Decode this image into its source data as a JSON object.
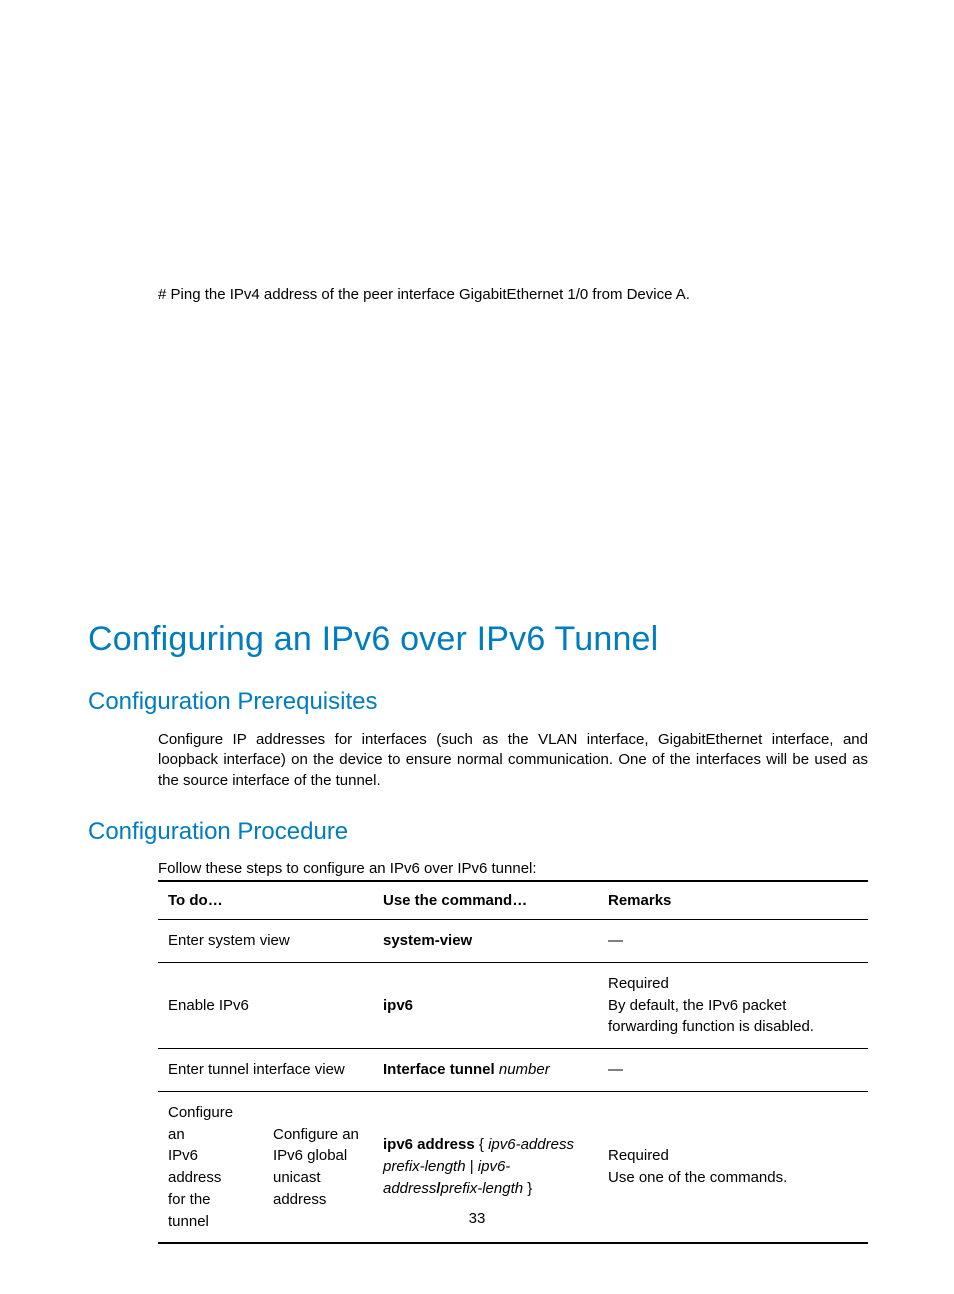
{
  "colors": {
    "heading": "#007cc1",
    "text": "#000000",
    "background": "#ffffff",
    "table_border": "#000000"
  },
  "typography": {
    "body_fontsize": 15,
    "h1_fontsize": 34,
    "h2_fontsize": 24
  },
  "intro_line": "# Ping the IPv4 address of the peer interface GigabitEthernet 1/0 from Device A.",
  "h1": "Configuring an IPv6 over IPv6 Tunnel",
  "h2_prereq": "Configuration Prerequisites",
  "prereq_para": "Configure IP addresses for interfaces (such as the VLAN interface, GigabitEthernet interface, and loopback interface) on the device to ensure normal communication. One of the interfaces will be used as the source interface of the tunnel.",
  "h2_proc": "Configuration Procedure",
  "steps_intro": "Follow these steps to configure an IPv6 over IPv6 tunnel:",
  "table": {
    "headers": {
      "todo": "To do…",
      "cmd": "Use the command…",
      "remarks": "Remarks"
    },
    "rows": [
      {
        "todo": "Enter system view",
        "cmd_bold": "system-view",
        "cmd_ital": "",
        "remarks_a": "—",
        "remarks_b": ""
      },
      {
        "todo": "Enable IPv6",
        "cmd_bold": "ipv6",
        "cmd_ital": "",
        "remarks_a": "Required",
        "remarks_b": "By default, the IPv6 packet forwarding function is disabled."
      },
      {
        "todo": "Enter tunnel interface view",
        "cmd_bold": "Interface tunnel",
        "cmd_ital": " number",
        "remarks_a": "—",
        "remarks_b": ""
      }
    ],
    "row4": {
      "todo_a_l1": "Configure an",
      "todo_a_l2": "IPv6 address",
      "todo_a_l3": "for the tunnel",
      "todo_b_l1": "Configure an",
      "todo_b_l2": "IPv6 global",
      "todo_b_l3": "unicast address",
      "cmd_bold": "ipv6 address",
      "cmd_seg1": " { ",
      "cmd_ital1": "ipv6-address prefix-length",
      "cmd_seg2": " | ",
      "cmd_ital2": "ipv6-address",
      "cmd_slash": "/",
      "cmd_ital3": "prefix-length",
      "cmd_seg3": " }",
      "remarks_a": "Required",
      "remarks_b": "Use one of the commands."
    }
  },
  "page_number": "33"
}
